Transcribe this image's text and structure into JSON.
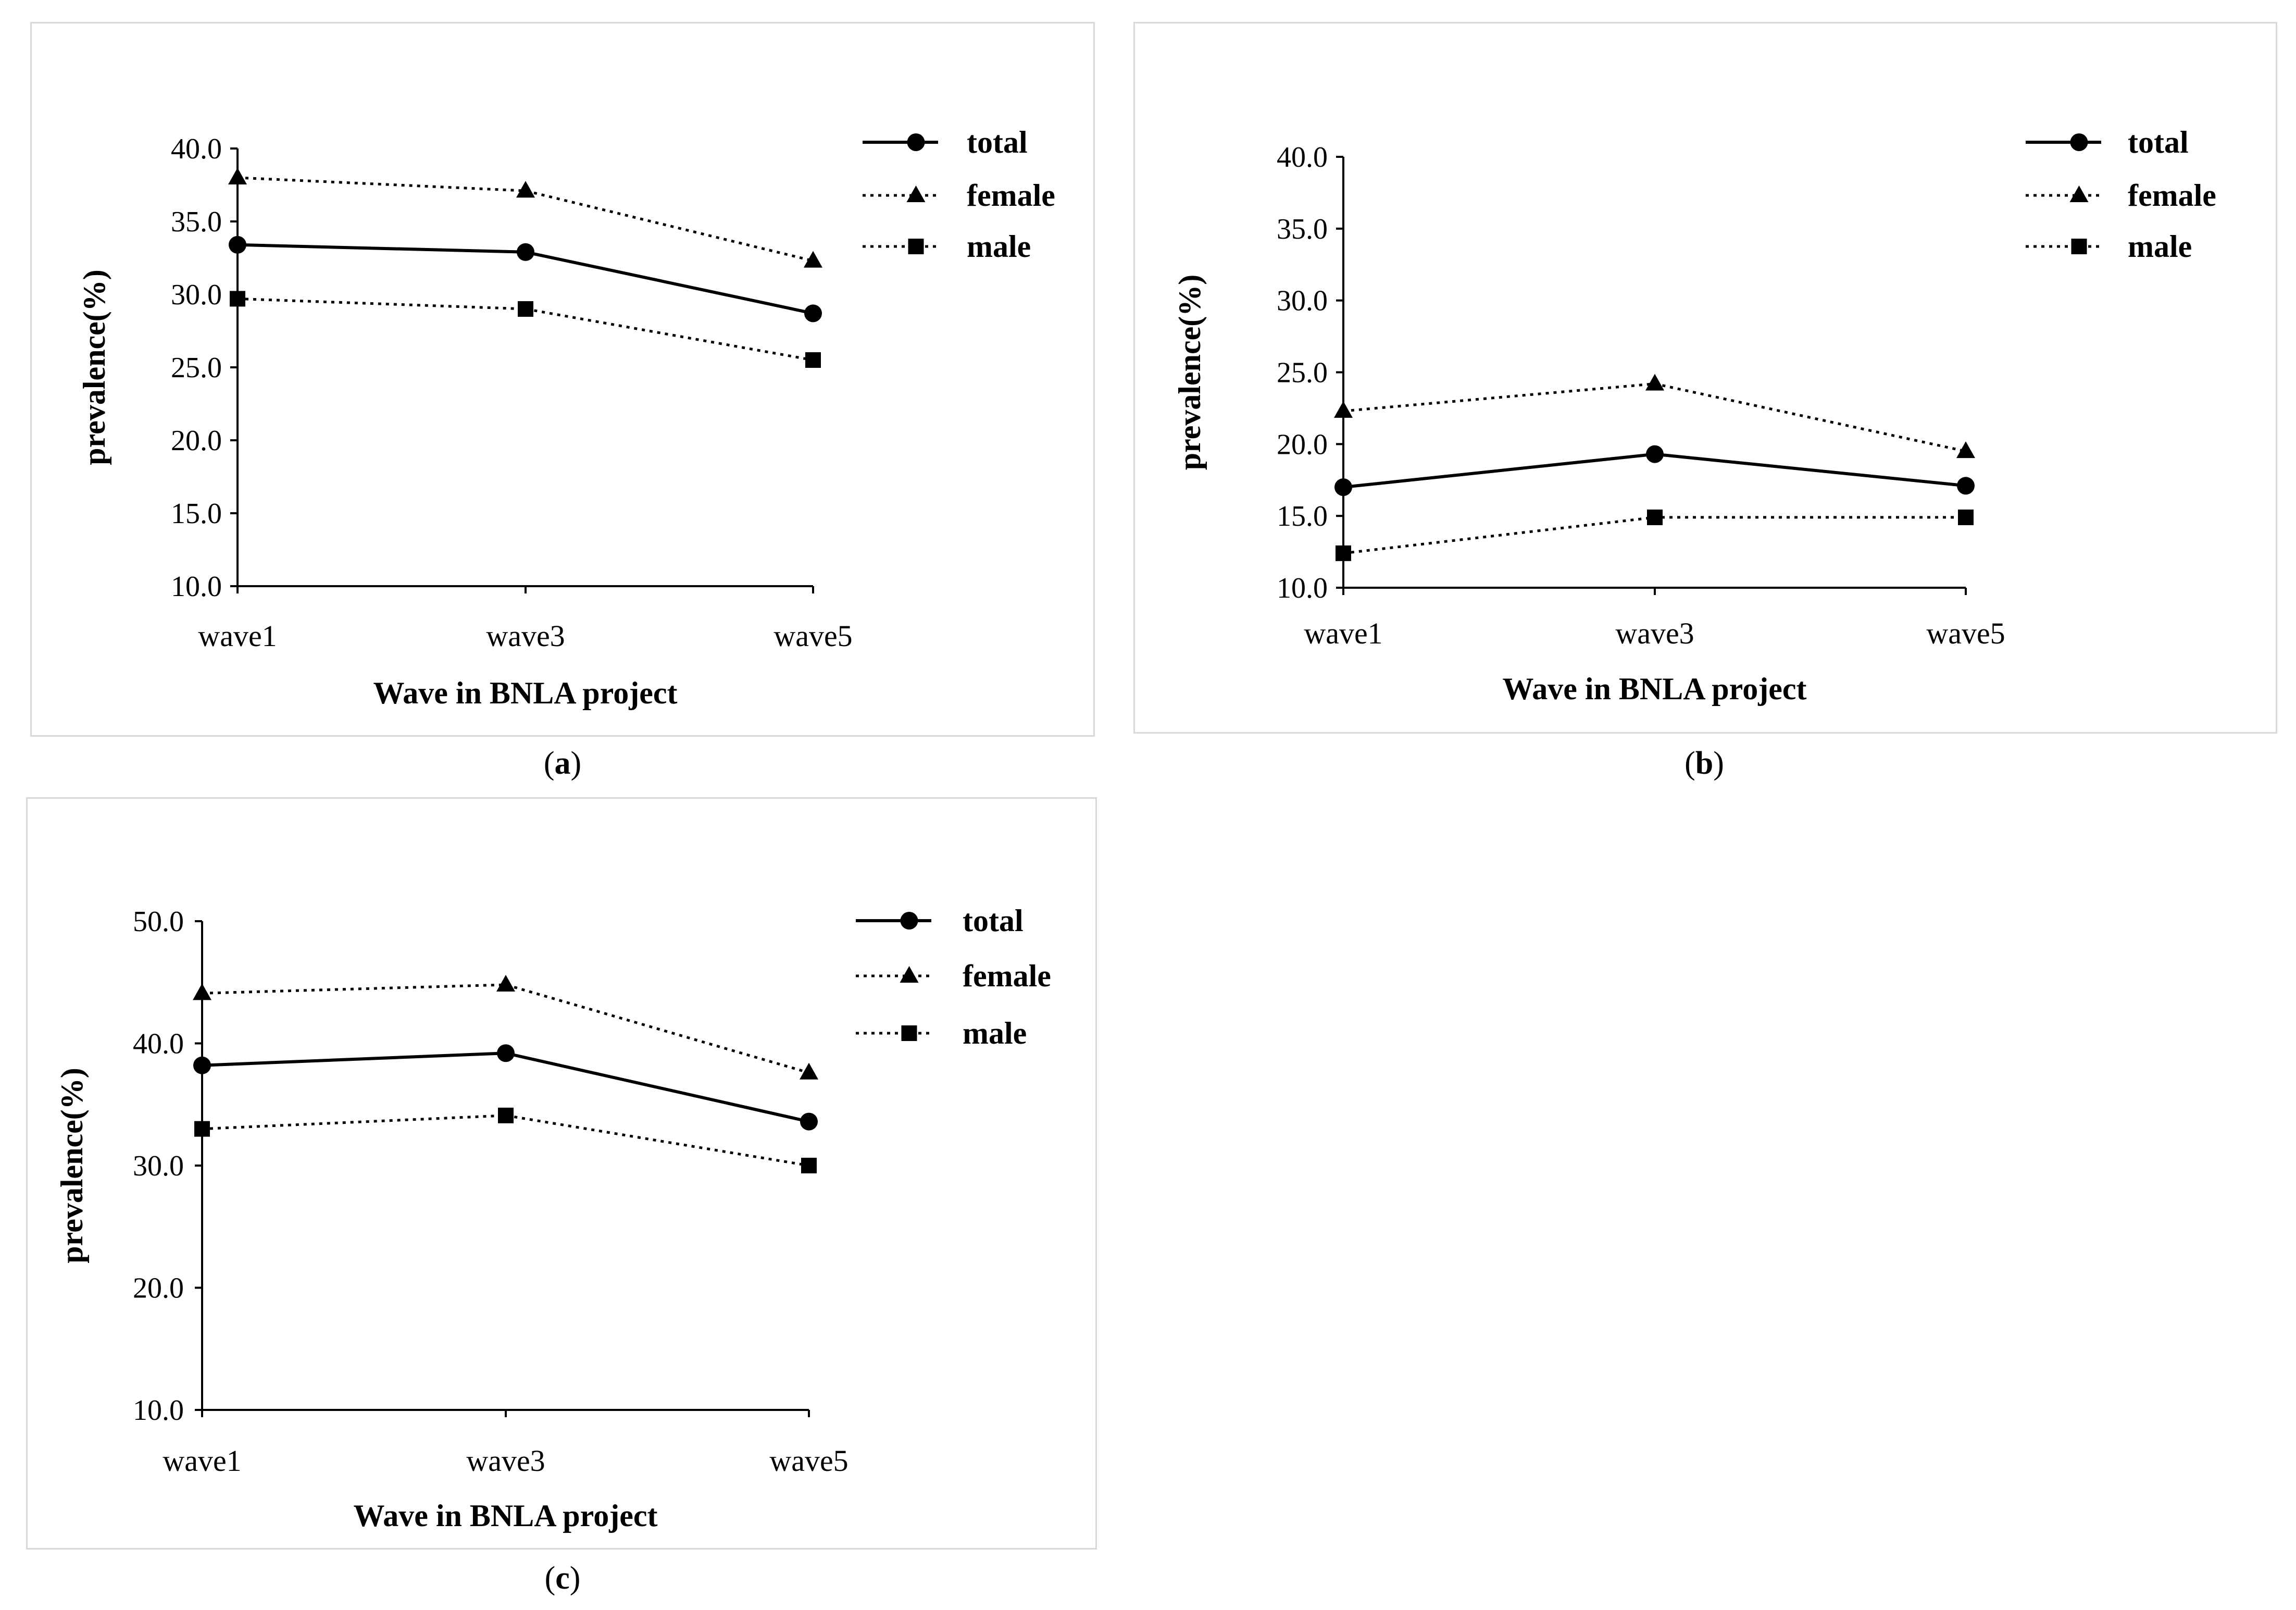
{
  "figure_captions": [
    "a",
    "b",
    "c"
  ],
  "chart_data": [
    {
      "panel": "a",
      "type": "line",
      "categories": [
        "wave1",
        "wave3",
        "wave5"
      ],
      "ylim": [
        10.0,
        40.0
      ],
      "yticks": [
        "10.0",
        "15.0",
        "20.0",
        "25.0",
        "30.0",
        "35.0",
        "40.0"
      ],
      "xlabel": "Wave in BNLA project",
      "ylabel": "prevalence(%)",
      "legend_position": "top-right",
      "series": [
        {
          "name": "total",
          "marker": "circle",
          "line": "solid",
          "values": [
            33.4,
            32.9,
            28.7
          ]
        },
        {
          "name": "female",
          "marker": "triangle",
          "line": "dotted",
          "values": [
            38.0,
            37.1,
            32.3
          ]
        },
        {
          "name": "male",
          "marker": "square",
          "line": "dotted",
          "values": [
            29.7,
            29.0,
            25.5
          ]
        }
      ]
    },
    {
      "panel": "b",
      "type": "line",
      "categories": [
        "wave1",
        "wave3",
        "wave5"
      ],
      "ylim": [
        10.0,
        40.0
      ],
      "yticks": [
        "10.0",
        "15.0",
        "20.0",
        "25.0",
        "30.0",
        "35.0",
        "40.0"
      ],
      "xlabel": "Wave in BNLA project",
      "ylabel": "prevalence(%)",
      "legend_position": "top-right",
      "series": [
        {
          "name": "total",
          "marker": "circle",
          "line": "solid",
          "values": [
            17.0,
            19.3,
            17.1
          ]
        },
        {
          "name": "female",
          "marker": "triangle",
          "line": "dotted",
          "values": [
            22.3,
            24.2,
            19.5
          ]
        },
        {
          "name": "male",
          "marker": "square",
          "line": "dotted",
          "values": [
            12.4,
            14.9,
            14.9
          ]
        }
      ]
    },
    {
      "panel": "c",
      "type": "line",
      "categories": [
        "wave1",
        "wave3",
        "wave5"
      ],
      "ylim": [
        10.0,
        50.0
      ],
      "yticks": [
        "10.0",
        "20.0",
        "30.0",
        "40.0",
        "50.0"
      ],
      "xlabel": "Wave in BNLA project",
      "ylabel": "prevalence(%)",
      "legend_position": "top-right",
      "series": [
        {
          "name": "total",
          "marker": "circle",
          "line": "solid",
          "values": [
            38.2,
            39.2,
            33.6
          ]
        },
        {
          "name": "female",
          "marker": "triangle",
          "line": "dotted",
          "values": [
            44.1,
            44.8,
            37.6
          ]
        },
        {
          "name": "male",
          "marker": "square",
          "line": "dotted",
          "values": [
            33.0,
            34.1,
            30.0
          ]
        }
      ]
    }
  ]
}
